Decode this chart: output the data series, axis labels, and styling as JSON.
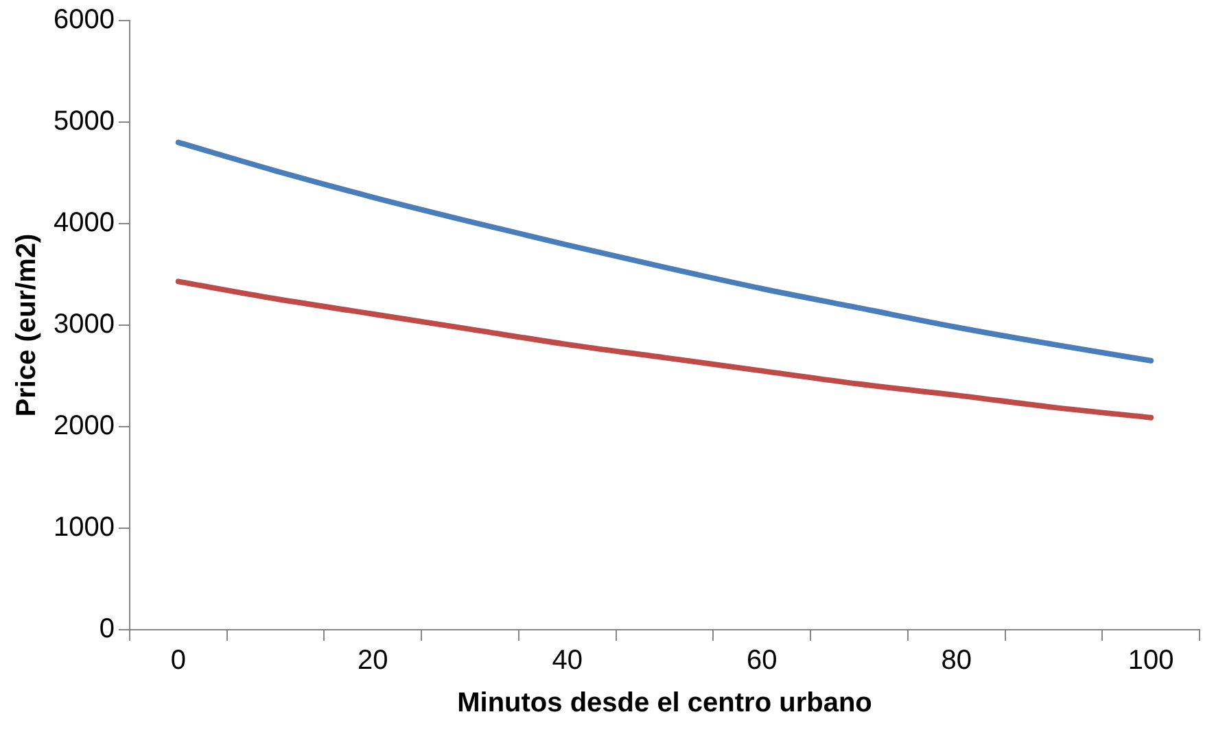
{
  "chart_data": {
    "type": "line",
    "xlabel": "Minutos desde el centro urbano",
    "ylabel": "Price (eur/m2)",
    "x": [
      0,
      10,
      20,
      30,
      40,
      50,
      60,
      70,
      80,
      90,
      100
    ],
    "series": [
      {
        "color": "#4a7ebb",
        "values": [
          4800,
          4520,
          4260,
          4020,
          3790,
          3570,
          3360,
          3170,
          2980,
          2810,
          2650
        ]
      },
      {
        "color": "#be4b48",
        "values": [
          3430,
          3260,
          3110,
          2960,
          2810,
          2680,
          2550,
          2420,
          2310,
          2190,
          2090
        ]
      }
    ],
    "xlim": [
      -5,
      105
    ],
    "xticks": [
      {
        "value": -5,
        "label": null
      },
      0,
      {
        "value": 5,
        "label": null
      },
      {
        "value": 15,
        "label": null
      },
      20,
      {
        "value": 25,
        "label": null
      },
      {
        "value": 35,
        "label": null
      },
      40,
      {
        "value": 45,
        "label": null
      },
      {
        "value": 55,
        "label": null
      },
      60,
      {
        "value": 65,
        "label": null
      },
      {
        "value": 75,
        "label": null
      },
      80,
      {
        "value": 85,
        "label": null
      },
      {
        "value": 95,
        "label": null
      },
      100,
      {
        "value": 105,
        "label": null
      }
    ],
    "ylim": [
      0,
      6000
    ],
    "yticks": [
      0,
      1000,
      2000,
      3000,
      4000,
      5000,
      6000
    ],
    "grid": false,
    "legend": false,
    "marker": "none",
    "line_style": "solid"
  }
}
